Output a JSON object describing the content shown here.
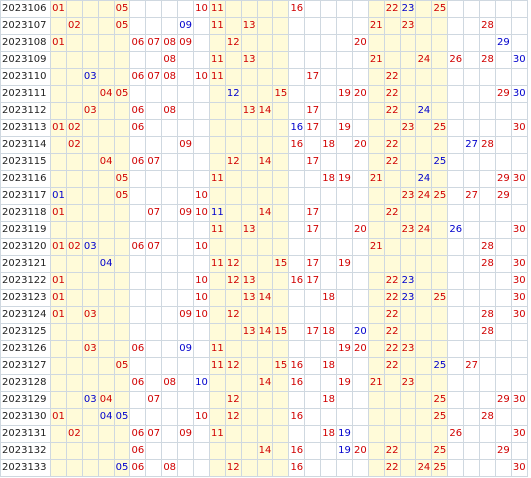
{
  "colors": {
    "red": "#d00000",
    "blue": "#0000cc",
    "band": "#fffbd9",
    "grid": "#cfd8e0"
  },
  "max_number": 30,
  "band_columns": [
    1,
    2,
    3,
    4,
    5,
    11,
    12,
    13,
    14,
    15,
    21,
    22,
    23,
    24,
    25
  ],
  "rows": [
    {
      "period": "2023106",
      "red": [
        1,
        5,
        10,
        11,
        16,
        22,
        25
      ],
      "blue": [
        23
      ]
    },
    {
      "period": "2023107",
      "red": [
        2,
        5,
        11,
        13,
        21,
        23,
        28
      ],
      "blue": [
        9
      ]
    },
    {
      "period": "2023108",
      "red": [
        1,
        6,
        7,
        8,
        9,
        12,
        20
      ],
      "blue": [
        29
      ]
    },
    {
      "period": "2023109",
      "red": [
        8,
        11,
        13,
        21,
        24,
        26,
        28
      ],
      "blue": [
        30
      ]
    },
    {
      "period": "2023110",
      "red": [
        6,
        7,
        8,
        10,
        11,
        17,
        22
      ],
      "blue": [
        3
      ]
    },
    {
      "period": "2023111",
      "red": [
        4,
        5,
        15,
        19,
        20,
        22,
        29
      ],
      "blue": [
        12,
        30
      ]
    },
    {
      "period": "2023112",
      "red": [
        3,
        6,
        8,
        13,
        14,
        17,
        22
      ],
      "blue": [
        24
      ]
    },
    {
      "period": "2023113",
      "red": [
        1,
        2,
        6,
        17,
        19,
        23,
        25,
        30
      ],
      "blue": [
        16
      ]
    },
    {
      "period": "2023114",
      "red": [
        2,
        9,
        16,
        18,
        20,
        22,
        28
      ],
      "blue": [
        27
      ]
    },
    {
      "period": "2023115",
      "red": [
        4,
        6,
        7,
        12,
        14,
        17,
        22
      ],
      "blue": [
        25
      ]
    },
    {
      "period": "2023116",
      "red": [
        5,
        11,
        18,
        19,
        21,
        29,
        30
      ],
      "blue": [
        24
      ]
    },
    {
      "period": "2023117",
      "red": [
        5,
        10,
        23,
        24,
        25,
        27,
        29
      ],
      "blue": [
        1
      ]
    },
    {
      "period": "2023118",
      "red": [
        1,
        7,
        9,
        10,
        14,
        17,
        22
      ],
      "blue": [
        11
      ]
    },
    {
      "period": "2023119",
      "red": [
        11,
        13,
        17,
        20,
        23,
        24,
        30
      ],
      "blue": [
        26
      ]
    },
    {
      "period": "2023120",
      "red": [
        1,
        2,
        6,
        7,
        10,
        21,
        28
      ],
      "blue": [
        3
      ]
    },
    {
      "period": "2023121",
      "red": [
        11,
        12,
        15,
        17,
        19,
        28,
        30
      ],
      "blue": [
        4
      ]
    },
    {
      "period": "2023122",
      "red": [
        1,
        10,
        12,
        13,
        16,
        17,
        22,
        30
      ],
      "blue": [
        23
      ]
    },
    {
      "period": "2023123",
      "red": [
        1,
        10,
        13,
        14,
        18,
        22,
        25,
        30
      ],
      "blue": [
        23
      ]
    },
    {
      "period": "2023124",
      "red": [
        1,
        3,
        9,
        10,
        12,
        22,
        28,
        30
      ],
      "blue": []
    },
    {
      "period": "2023125",
      "red": [
        13,
        14,
        15,
        17,
        18,
        22,
        28
      ],
      "blue": [
        20
      ]
    },
    {
      "period": "2023126",
      "red": [
        3,
        6,
        11,
        19,
        20,
        22,
        23
      ],
      "blue": [
        9
      ]
    },
    {
      "period": "2023127",
      "red": [
        5,
        11,
        12,
        15,
        16,
        18,
        22,
        27
      ],
      "blue": [
        25
      ]
    },
    {
      "period": "2023128",
      "red": [
        6,
        8,
        14,
        16,
        19,
        21,
        23
      ],
      "blue": [
        10
      ]
    },
    {
      "period": "2023129",
      "red": [
        4,
        7,
        12,
        18,
        25,
        29,
        30
      ],
      "blue": [
        3
      ]
    },
    {
      "period": "2023130",
      "red": [
        1,
        10,
        12,
        16,
        25,
        28
      ],
      "blue": [
        4,
        5
      ]
    },
    {
      "period": "2023131",
      "red": [
        2,
        6,
        7,
        9,
        11,
        18,
        26,
        30
      ],
      "blue": [
        19
      ]
    },
    {
      "period": "2023132",
      "red": [
        6,
        14,
        16,
        20,
        22,
        25,
        29
      ],
      "blue": [
        19
      ]
    },
    {
      "period": "2023133",
      "red": [
        6,
        8,
        12,
        16,
        22,
        24,
        25,
        30
      ],
      "blue": [
        5
      ]
    }
  ]
}
